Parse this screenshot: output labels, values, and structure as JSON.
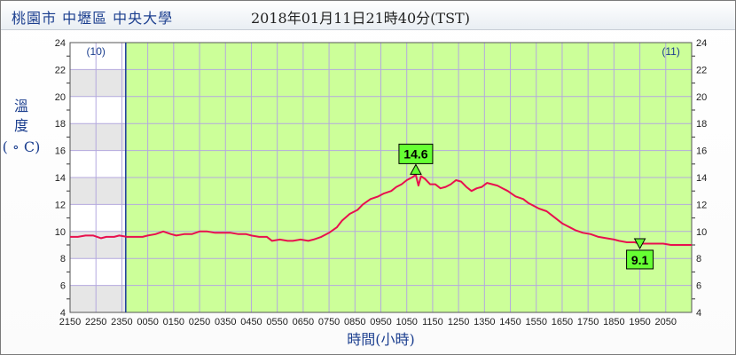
{
  "header": {
    "station": "桃園市 中壢區 中央大學",
    "datetime": "2018年01月11日21時40分(TST)"
  },
  "chart_data": {
    "type": "line",
    "ylabel_chars": [
      "溫",
      "度"
    ],
    "ylabel_unit": "( ∘ C)",
    "xlabel": "時間(小時)",
    "ylim": [
      4,
      24
    ],
    "yticks": [
      4,
      6,
      8,
      10,
      12,
      14,
      16,
      18,
      20,
      22,
      24
    ],
    "xlim": [
      0,
      24
    ],
    "xticks": [
      "2150",
      "2250",
      "2350",
      "0050",
      "0150",
      "0250",
      "0350",
      "0450",
      "0550",
      "0650",
      "0750",
      "0850",
      "0950",
      "1050",
      "1150",
      "1250",
      "1350",
      "1450",
      "1550",
      "1650",
      "1750",
      "1850",
      "1950",
      "2050"
    ],
    "day_labels": [
      {
        "text": "(10)",
        "x": 1.0
      },
      {
        "text": "(11)",
        "x": 23.2
      }
    ],
    "day_boundary": 2.15,
    "max": {
      "label": "14.6",
      "x": 13.35,
      "y": 14.5
    },
    "min": {
      "label": "9.1",
      "x": 22.0,
      "y": 9.2
    },
    "colors": {
      "line": "#e8104f",
      "today_bg": "#ccff99",
      "prev_bg": "#ffffff",
      "prev_band": "#e6e6e6",
      "grid": "#b4a9de",
      "marker": "#66ff33",
      "frame": "#1a3a9a"
    },
    "series": [
      {
        "x": [
          0,
          0.3,
          0.6,
          0.9,
          1.2,
          1.4,
          1.7,
          1.9,
          2.2,
          2.5,
          2.8,
          3.0,
          3.3,
          3.6,
          3.9,
          4.1,
          4.4,
          4.7,
          5.0,
          5.3,
          5.6,
          5.9,
          6.2,
          6.5,
          6.8,
          7.0,
          7.3,
          7.6,
          7.8,
          8.1,
          8.4,
          8.6,
          8.9,
          9.2,
          9.4,
          9.7,
          10.0,
          10.3,
          10.5,
          10.8,
          11.1,
          11.3,
          11.6,
          11.9,
          12.1,
          12.4,
          12.6,
          12.8,
          13.0,
          13.2,
          13.35,
          13.45,
          13.55,
          13.7,
          13.9,
          14.1,
          14.3,
          14.5,
          14.7,
          14.9,
          15.1,
          15.3,
          15.5,
          15.7,
          15.9,
          16.1,
          16.3,
          16.5,
          16.7,
          16.9,
          17.2,
          17.5,
          17.7,
          17.9,
          18.1,
          18.4,
          18.6,
          18.8,
          19.0,
          19.3,
          19.5,
          19.8,
          20.1,
          20.4,
          20.7,
          21.0,
          21.2,
          21.5,
          21.8,
          22.0,
          22.3,
          22.6,
          22.9,
          23.2,
          23.5,
          23.7,
          24.0
        ],
        "y": [
          9.6,
          9.6,
          9.7,
          9.7,
          9.5,
          9.6,
          9.6,
          9.7,
          9.6,
          9.6,
          9.6,
          9.7,
          9.8,
          10.0,
          9.8,
          9.7,
          9.8,
          9.8,
          10.0,
          10.0,
          9.9,
          9.9,
          9.9,
          9.8,
          9.8,
          9.7,
          9.6,
          9.6,
          9.3,
          9.4,
          9.3,
          9.3,
          9.4,
          9.3,
          9.4,
          9.6,
          9.9,
          10.3,
          10.8,
          11.3,
          11.6,
          12.0,
          12.4,
          12.6,
          12.8,
          13.0,
          13.3,
          13.5,
          13.8,
          14.0,
          14.2,
          13.4,
          14.1,
          13.9,
          13.5,
          13.5,
          13.2,
          13.3,
          13.5,
          13.8,
          13.7,
          13.3,
          13.0,
          13.2,
          13.3,
          13.6,
          13.5,
          13.4,
          13.2,
          13.0,
          12.6,
          12.4,
          12.1,
          11.9,
          11.7,
          11.5,
          11.2,
          10.9,
          10.6,
          10.3,
          10.1,
          9.9,
          9.8,
          9.6,
          9.5,
          9.4,
          9.3,
          9.2,
          9.2,
          9.1,
          9.1,
          9.1,
          9.1,
          9.0,
          9.0,
          9.0,
          9.0
        ]
      }
    ]
  }
}
